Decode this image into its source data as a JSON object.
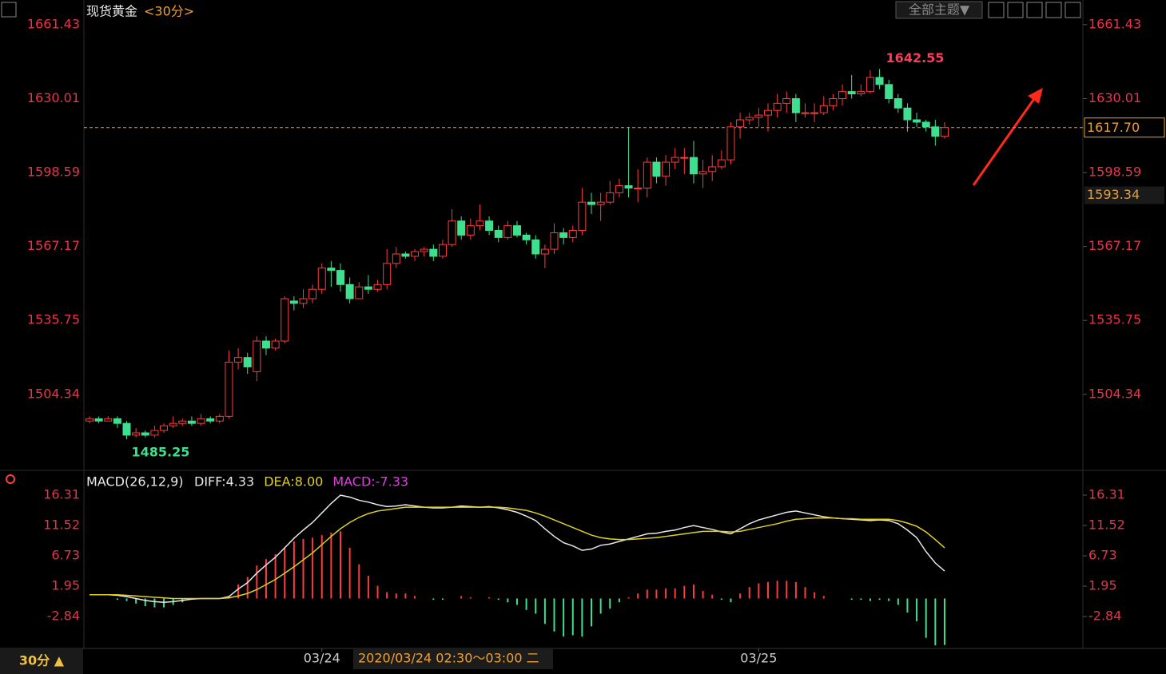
{
  "header": {
    "symbol": "现货黄金",
    "period": "<30分>",
    "theme_button": "全部主题▼"
  },
  "footer": {
    "period_button": "30分 ▲",
    "cursor_time": "2020/03/24 02:30～03:00 二"
  },
  "chart_data": [
    {
      "type": "candlestick",
      "up_color": "#ff3b3b",
      "down_color": "#3ee08f",
      "ylim": [
        1473.4,
        1662.4
      ],
      "yticks": [
        1661.43,
        1630.01,
        1598.59,
        1567.17,
        1535.75,
        1504.34
      ],
      "xticks": [
        {
          "value": 25,
          "label": "03/24"
        },
        {
          "value": 72,
          "label": "03/25"
        }
      ],
      "last_price": {
        "value": 1617.7,
        "label": "1617.70"
      },
      "price_tag": 1593.34,
      "open": [
        1493,
        1494,
        1493,
        1494,
        1492,
        1487,
        1488,
        1487,
        1489,
        1491,
        1492,
        1493,
        1492,
        1494,
        1493,
        1495,
        1518,
        1520,
        1514,
        1527,
        1524,
        1527,
        1544,
        1543,
        1545,
        1549,
        1558,
        1557,
        1551,
        1545,
        1550,
        1549,
        1551,
        1560,
        1564,
        1563,
        1565,
        1566,
        1563,
        1568,
        1578,
        1572,
        1576,
        1578,
        1574,
        1571,
        1576,
        1572,
        1570,
        1564,
        1566,
        1573,
        1571,
        1574,
        1586,
        1585,
        1586,
        1590,
        1593,
        1592,
        1592,
        1603,
        1597,
        1603,
        1605,
        1605,
        1598,
        1599,
        1601,
        1604,
        1618,
        1621,
        1622,
        1623,
        1625,
        1628,
        1630,
        1624,
        1624,
        1624,
        1627,
        1630,
        1633,
        1632,
        1633,
        1639,
        1636,
        1630,
        1626,
        1621,
        1620,
        1618,
        1614
      ],
      "close": [
        1494,
        1493,
        1494,
        1492,
        1487,
        1488,
        1487,
        1489,
        1491,
        1492,
        1493,
        1492,
        1494,
        1493,
        1495,
        1518,
        1520,
        1516,
        1527,
        1524,
        1527,
        1545,
        1543,
        1545,
        1549,
        1558,
        1557,
        1551,
        1545,
        1550,
        1549,
        1551,
        1560,
        1564,
        1563,
        1565,
        1566,
        1563,
        1568,
        1578,
        1572,
        1576,
        1578,
        1574,
        1571,
        1576,
        1572,
        1570,
        1564,
        1566,
        1573,
        1571,
        1574,
        1586,
        1585,
        1586,
        1590,
        1593,
        1592,
        1592,
        1603,
        1597,
        1603,
        1605,
        1605,
        1598,
        1599,
        1601,
        1604,
        1618,
        1621,
        1622,
        1623,
        1625,
        1628,
        1630,
        1624,
        1624,
        1624,
        1627,
        1630,
        1633,
        1632,
        1633,
        1639,
        1636,
        1630,
        1626,
        1621,
        1620,
        1618,
        1614,
        1617.7
      ],
      "high": [
        1495,
        1495,
        1495,
        1495,
        1493,
        1490,
        1489,
        1491,
        1492,
        1495,
        1494,
        1495,
        1496,
        1495,
        1496,
        1523,
        1524,
        1522,
        1529,
        1529,
        1528,
        1546,
        1546,
        1549,
        1551,
        1560,
        1561,
        1560,
        1554,
        1552,
        1555,
        1553,
        1566,
        1567,
        1565,
        1566,
        1567,
        1568,
        1570,
        1583,
        1580,
        1579,
        1585,
        1580,
        1576,
        1578,
        1578,
        1573,
        1572,
        1568,
        1577,
        1575,
        1576,
        1592,
        1590,
        1590,
        1595,
        1596,
        1618,
        1600,
        1605,
        1605,
        1606,
        1609,
        1609,
        1612,
        1604,
        1606,
        1608,
        1620,
        1624,
        1624,
        1626,
        1628,
        1632,
        1633,
        1632,
        1628,
        1628,
        1631,
        1632,
        1636,
        1640,
        1636,
        1642,
        1642.55,
        1638,
        1632,
        1628,
        1624,
        1621,
        1621,
        1620
      ],
      "low": [
        1492,
        1492,
        1493,
        1490,
        1485.25,
        1486,
        1486,
        1486,
        1488,
        1490,
        1491,
        1491,
        1491,
        1492,
        1492,
        1494,
        1515,
        1513,
        1510,
        1521,
        1523,
        1526,
        1540,
        1541,
        1543,
        1547,
        1550,
        1548,
        1543,
        1545,
        1547,
        1548,
        1549,
        1558,
        1562,
        1561,
        1563,
        1561,
        1562,
        1567,
        1570,
        1570,
        1574,
        1572,
        1569,
        1570,
        1571,
        1568,
        1562,
        1558,
        1564,
        1568,
        1569,
        1572,
        1581,
        1578,
        1585,
        1588,
        1588,
        1586,
        1588,
        1594,
        1593,
        1600,
        1598,
        1594,
        1592,
        1595,
        1600,
        1602,
        1613,
        1619,
        1618,
        1616,
        1622,
        1624,
        1620,
        1622,
        1620,
        1623,
        1625,
        1627,
        1630,
        1631,
        1632,
        1634,
        1628,
        1624,
        1616,
        1618,
        1616,
        1610,
        1613
      ]
    },
    {
      "type": "macd",
      "indicator": "MACD(26,12,9)",
      "legend": [
        "DIFF:4.33",
        "DEA:8.00",
        "MACD:-7.33"
      ],
      "ylim": [
        -7.88,
        17.32
      ],
      "yticks": [
        16.31,
        11.52,
        6.73,
        1.95,
        -2.84
      ],
      "up_color": "#ff3b3b",
      "down_color": "#3ee08f",
      "series": [
        {
          "name": "DIFF",
          "color": "#e8e8e8",
          "values": [
            0.6,
            0.6,
            0.6,
            0.5,
            0.3,
            0,
            -0.3,
            -0.5,
            -0.6,
            -0.5,
            -0.3,
            -0.1,
            0,
            0,
            0,
            0.3,
            1.5,
            2.5,
            4,
            5.3,
            6.5,
            8,
            9.5,
            10.8,
            12,
            13.5,
            15,
            16.3,
            16,
            15.5,
            15.2,
            14.8,
            14.5,
            14.6,
            14.8,
            14.6,
            14.4,
            14.3,
            14.3,
            14.4,
            14.6,
            14.5,
            14.4,
            14.5,
            14.3,
            14,
            13.6,
            13,
            12.3,
            11,
            9.8,
            8.8,
            8.3,
            7.6,
            7.8,
            8.4,
            8.6,
            9,
            9.4,
            9.8,
            10.2,
            10.3,
            10.6,
            10.8,
            11.2,
            11.5,
            11.2,
            10.9,
            10.5,
            10.2,
            11,
            11.8,
            12.4,
            12.8,
            13.2,
            13.6,
            13.8,
            13.5,
            13.2,
            12.9,
            12.7,
            12.6,
            12.5,
            12.4,
            12.3,
            12.4,
            12.3,
            11.8,
            10.8,
            9.6,
            7.4,
            5.6,
            4.33
          ]
        },
        {
          "name": "DEA",
          "color": "#e0d020",
          "values": [
            0.6,
            0.6,
            0.6,
            0.6,
            0.5,
            0.4,
            0.3,
            0.2,
            0.1,
            0,
            0,
            0,
            0,
            0,
            0,
            0.1,
            0.4,
            0.8,
            1.4,
            2.2,
            3,
            4,
            5,
            6.1,
            7.2,
            8.5,
            9.8,
            11,
            12,
            12.8,
            13.4,
            13.8,
            14,
            14.2,
            14.4,
            14.4,
            14.4,
            14.4,
            14.4,
            14.4,
            14.4,
            14.4,
            14.4,
            14.4,
            14.4,
            14.3,
            14.1,
            13.9,
            13.5,
            13,
            12.4,
            11.8,
            11.2,
            10.6,
            10,
            9.6,
            9.4,
            9.3,
            9.3,
            9.4,
            9.5,
            9.6,
            9.8,
            10,
            10.2,
            10.4,
            10.6,
            10.6,
            10.6,
            10.5,
            10.6,
            10.9,
            11.2,
            11.5,
            11.8,
            12.2,
            12.5,
            12.6,
            12.7,
            12.7,
            12.7,
            12.6,
            12.6,
            12.5,
            12.5,
            12.5,
            12.5,
            12.3,
            11.9,
            11.4,
            10.5,
            9.3,
            8
          ]
        },
        {
          "name": "MACD",
          "color": "#e040e0",
          "values": [
            0,
            0,
            0,
            -0.2,
            -0.4,
            -0.8,
            -1.2,
            -1.4,
            -1.4,
            -1,
            -0.6,
            -0.2,
            0,
            0,
            0,
            0.4,
            2.2,
            3.4,
            5.2,
            6.2,
            7,
            8,
            9,
            9.4,
            9.6,
            10,
            10.4,
            10.6,
            8,
            5.4,
            3.6,
            2,
            1,
            0.8,
            0.8,
            0.4,
            0,
            -0.2,
            -0.2,
            0,
            0.4,
            0.2,
            0,
            0.2,
            -0.2,
            -0.6,
            -1,
            -1.8,
            -2.4,
            -4,
            -5.2,
            -6,
            -5.8,
            -6,
            -4.4,
            -2.4,
            -1.6,
            -0.6,
            0.2,
            0.8,
            1.4,
            1.4,
            1.6,
            1.6,
            2,
            2.2,
            1.2,
            0.6,
            -0.2,
            -0.6,
            0.8,
            1.8,
            2.4,
            2.6,
            2.8,
            2.8,
            2.6,
            1.8,
            1,
            0.4,
            0,
            0,
            -0.2,
            -0.2,
            -0.4,
            -0.2,
            -0.4,
            -1,
            -2.2,
            -3.6,
            -6.2,
            -7.4,
            -7.33
          ]
        }
      ]
    }
  ]
}
